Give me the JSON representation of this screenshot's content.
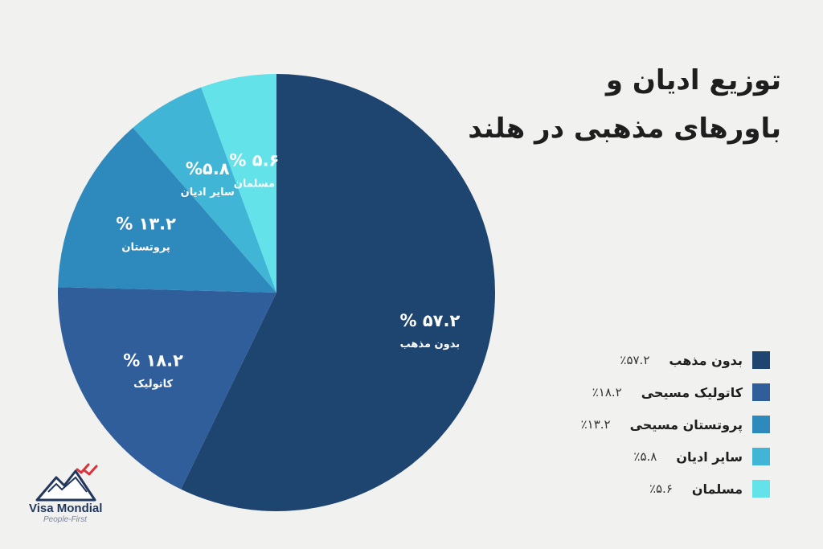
{
  "title": {
    "line1": "توزیع ادیان و",
    "line2": "باورهای مذهبی در هلند"
  },
  "chart_data": {
    "type": "pie",
    "title": "توزیع ادیان و باورهای مذهبی در هلند",
    "slices": [
      {
        "label": "بدون مذهب",
        "legend_label": "بدون مذهب",
        "value": 57.2,
        "display_value": "% ۵۷.۲",
        "legend_value": "٪۵۷.۲",
        "color": "#1e4470"
      },
      {
        "label": "کاتولیک",
        "legend_label": "کاتولیک مسیحی",
        "value": 18.2,
        "display_value": "% ۱۸.۲",
        "legend_value": "٪۱۸.۲",
        "color": "#2f5e9b"
      },
      {
        "label": "پروتستان",
        "legend_label": "پروتستان مسیحی",
        "value": 13.2,
        "display_value": "% ۱۳.۲",
        "legend_value": "٪۱۳.۲",
        "color": "#2e89bd"
      },
      {
        "label": "سایر ادیان",
        "legend_label": "سایر ادیان",
        "value": 5.8,
        "display_value": "%۵.۸",
        "legend_value": "٪۵.۸",
        "color": "#40b5d6"
      },
      {
        "label": "مسلمان",
        "legend_label": "مسلمان",
        "value": 5.6,
        "display_value": "% ۵.۶",
        "legend_value": "٪۵.۶",
        "color": "#63e2ea"
      }
    ],
    "legend_position": "right"
  },
  "logo": {
    "name": "Visa Mondial",
    "tagline": "People-First"
  }
}
